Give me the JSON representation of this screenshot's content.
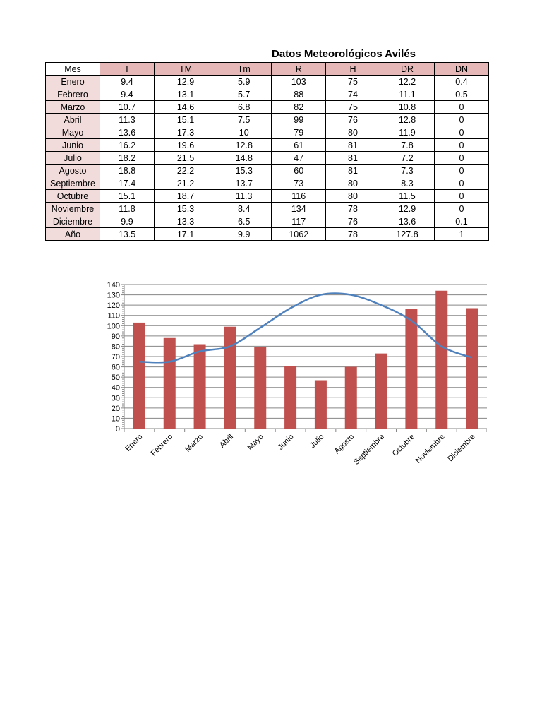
{
  "title": "Datos Meteorológicos Avilés",
  "table": {
    "headers": [
      "Mes",
      "T",
      "TM",
      "Tm",
      "R",
      "H",
      "DR",
      "DN"
    ],
    "rows": [
      [
        "Enero",
        "9.4",
        "12.9",
        "5.9",
        "103",
        "75",
        "12.2",
        "0.4"
      ],
      [
        "Febrero",
        "9.4",
        "13.1",
        "5.7",
        "88",
        "74",
        "11.1",
        "0.5"
      ],
      [
        "Marzo",
        "10.7",
        "14.6",
        "6.8",
        "82",
        "75",
        "10.8",
        "0"
      ],
      [
        "Abril",
        "11.3",
        "15.1",
        "7.5",
        "99",
        "76",
        "12.8",
        "0"
      ],
      [
        "Mayo",
        "13.6",
        "17.3",
        "10",
        "79",
        "80",
        "11.9",
        "0"
      ],
      [
        "Junio",
        "16.2",
        "19.6",
        "12.8",
        "61",
        "81",
        "7.8",
        "0"
      ],
      [
        "Julio",
        "18.2",
        "21.5",
        "14.8",
        "47",
        "81",
        "7.2",
        "0"
      ],
      [
        "Agosto",
        "18.8",
        "22.2",
        "15.3",
        "60",
        "81",
        "7.3",
        "0"
      ],
      [
        "Septiembre",
        "17.4",
        "21.2",
        "13.7",
        "73",
        "80",
        "8.3",
        "0"
      ],
      [
        "Octubre",
        "15.1",
        "18.7",
        "11.3",
        "116",
        "80",
        "11.5",
        "0"
      ],
      [
        "Noviembre",
        "11.8",
        "15.3",
        "8.4",
        "134",
        "78",
        "12.9",
        "0"
      ],
      [
        "Diciembre",
        "9.9",
        "13.3",
        "6.5",
        "117",
        "76",
        "13.6",
        "0.1"
      ],
      [
        "Año",
        "13.5",
        "17.1",
        "9.9",
        "1062",
        "78",
        "127.8",
        "1"
      ]
    ]
  },
  "chart_data": {
    "type": "bar",
    "title": "",
    "xlabel": "",
    "ylabel": "",
    "categories": [
      "Enero",
      "Febrero",
      "Marzo",
      "Abril",
      "Mayo",
      "Junio",
      "Julio",
      "Agosto",
      "Septiembre",
      "Octubre",
      "Noviembre",
      "Diciembre"
    ],
    "ylim": [
      0,
      140
    ],
    "yticks": [
      0,
      10,
      20,
      30,
      40,
      50,
      60,
      70,
      80,
      90,
      100,
      110,
      120,
      130,
      140
    ],
    "grid": true,
    "legend": "none",
    "series": [
      {
        "type": "bar",
        "color": "#c0504d",
        "values": [
          103,
          88,
          82,
          99,
          79,
          61,
          47,
          60,
          73,
          116,
          134,
          117
        ]
      },
      {
        "type": "line",
        "smooth": true,
        "color": "#4f81bd",
        "values": [
          65,
          65,
          75,
          80,
          98,
          117,
          130,
          130,
          120,
          105,
          80,
          69
        ]
      }
    ]
  }
}
